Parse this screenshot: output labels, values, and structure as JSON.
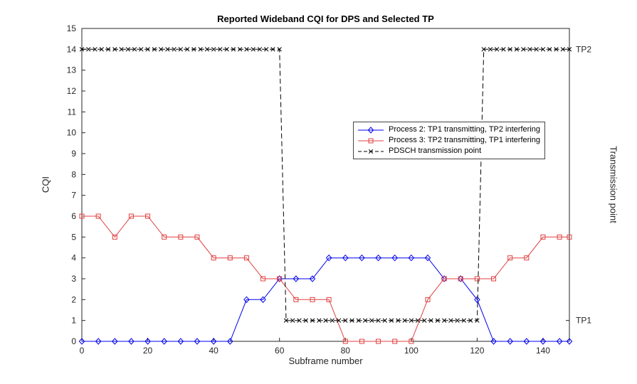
{
  "chart_data": {
    "type": "line",
    "title": "Reported Wideband CQI for DPS and Selected TP",
    "xlabel": "Subframe number",
    "ylabel": "CQI",
    "y2label": "Transmission point",
    "xlim": [
      0,
      148
    ],
    "ylim": [
      0,
      15
    ],
    "xticks": [
      0,
      20,
      40,
      60,
      80,
      100,
      120,
      140
    ],
    "yticks": [
      0,
      1,
      2,
      3,
      4,
      5,
      6,
      7,
      8,
      9,
      10,
      11,
      12,
      13,
      14,
      15
    ],
    "y2ticks": [
      {
        "value": 1,
        "label": "TP1"
      },
      {
        "value": 14,
        "label": "TP2"
      }
    ],
    "grid": false,
    "legend_position": "inside-center-right",
    "axis_color": "#262626",
    "series": [
      {
        "name": "Process 2: TP1 transmitting, TP2 interfering",
        "color": "#0000ee",
        "marker": "diamond",
        "dash": false,
        "x": [
          0,
          5,
          10,
          15,
          20,
          25,
          30,
          35,
          40,
          45,
          50,
          55,
          60,
          65,
          70,
          75,
          80,
          85,
          90,
          95,
          100,
          105,
          110,
          115,
          120,
          125,
          130,
          135,
          140,
          145,
          148
        ],
        "y": [
          0,
          0,
          0,
          0,
          0,
          0,
          0,
          0,
          0,
          0,
          2,
          2,
          3,
          3,
          3,
          4,
          4,
          4,
          4,
          4,
          4,
          4,
          3,
          3,
          2,
          0,
          0,
          0,
          0,
          0,
          0
        ]
      },
      {
        "name": "Process 3: TP2 transmitting, TP1 interfering",
        "color": "#e04040",
        "marker": "square",
        "dash": false,
        "x": [
          0,
          5,
          10,
          15,
          20,
          25,
          30,
          35,
          40,
          45,
          50,
          55,
          60,
          65,
          70,
          75,
          80,
          85,
          90,
          95,
          100,
          105,
          110,
          115,
          120,
          125,
          130,
          135,
          140,
          145,
          148
        ],
        "y": [
          6,
          6,
          5,
          6,
          6,
          5,
          5,
          5,
          4,
          4,
          4,
          3,
          3,
          2,
          2,
          2,
          0,
          0,
          0,
          0,
          0,
          2,
          3,
          3,
          3,
          3,
          4,
          4,
          5,
          5,
          5
        ]
      },
      {
        "name": "PDSCH transmission point",
        "color": "#000000",
        "marker": "x",
        "dash": true,
        "x": [
          0,
          2,
          4,
          6,
          8,
          10,
          12,
          14,
          16,
          18,
          20,
          22,
          24,
          26,
          28,
          30,
          32,
          34,
          36,
          38,
          40,
          42,
          44,
          46,
          48,
          50,
          52,
          54,
          56,
          58,
          60,
          62,
          64,
          66,
          68,
          70,
          72,
          74,
          76,
          78,
          80,
          82,
          84,
          86,
          88,
          90,
          92,
          94,
          96,
          98,
          100,
          102,
          104,
          106,
          108,
          110,
          112,
          114,
          116,
          118,
          120,
          122,
          124,
          126,
          128,
          130,
          132,
          134,
          136,
          138,
          140,
          142,
          144,
          146,
          148
        ],
        "y": [
          14,
          14,
          14,
          14,
          14,
          14,
          14,
          14,
          14,
          14,
          14,
          14,
          14,
          14,
          14,
          14,
          14,
          14,
          14,
          14,
          14,
          14,
          14,
          14,
          14,
          14,
          14,
          14,
          14,
          14,
          14,
          1,
          1,
          1,
          1,
          1,
          1,
          1,
          1,
          1,
          1,
          1,
          1,
          1,
          1,
          1,
          1,
          1,
          1,
          1,
          1,
          1,
          1,
          1,
          1,
          1,
          1,
          1,
          1,
          1,
          1,
          14,
          14,
          14,
          14,
          14,
          14,
          14,
          14,
          14,
          14,
          14,
          14,
          14,
          14
        ]
      }
    ]
  }
}
